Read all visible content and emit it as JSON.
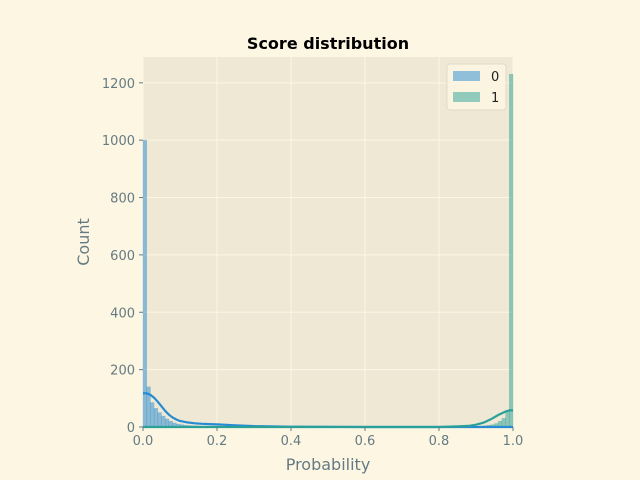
{
  "chart_data": {
    "type": "bar",
    "title": "Score distribution",
    "xlabel": "Probability",
    "ylabel": "Count",
    "xlim": [
      0,
      1
    ],
    "ylim": [
      0,
      1290
    ],
    "xticks": [
      "0.0",
      "0.2",
      "0.4",
      "0.6",
      "0.8",
      "1.0"
    ],
    "yticks": [
      "0",
      "200",
      "400",
      "600",
      "800",
      "1000",
      "1200"
    ],
    "grid": true,
    "legend": {
      "placement": "top-right",
      "entries": [
        "0",
        "1"
      ]
    },
    "bin_width": 0.01,
    "series": [
      {
        "name": "0",
        "color": "#268bd2",
        "bins": [
          {
            "x": 0.0,
            "count": 1000
          },
          {
            "x": 0.01,
            "count": 140
          },
          {
            "x": 0.02,
            "count": 85
          },
          {
            "x": 0.03,
            "count": 65
          },
          {
            "x": 0.04,
            "count": 50
          },
          {
            "x": 0.05,
            "count": 38
          },
          {
            "x": 0.06,
            "count": 28
          },
          {
            "x": 0.07,
            "count": 20
          },
          {
            "x": 0.08,
            "count": 14
          },
          {
            "x": 0.09,
            "count": 10
          },
          {
            "x": 0.1,
            "count": 8
          },
          {
            "x": 0.11,
            "count": 6
          },
          {
            "x": 0.12,
            "count": 5
          },
          {
            "x": 0.13,
            "count": 4
          },
          {
            "x": 0.14,
            "count": 4
          },
          {
            "x": 0.15,
            "count": 3
          },
          {
            "x": 0.16,
            "count": 3
          },
          {
            "x": 0.18,
            "count": 2
          },
          {
            "x": 0.2,
            "count": 2
          }
        ],
        "kde": [
          [
            0.0,
            118
          ],
          [
            0.01,
            117
          ],
          [
            0.02,
            112
          ],
          [
            0.03,
            102
          ],
          [
            0.04,
            88
          ],
          [
            0.05,
            72
          ],
          [
            0.06,
            56
          ],
          [
            0.07,
            43
          ],
          [
            0.08,
            33
          ],
          [
            0.09,
            26
          ],
          [
            0.1,
            21
          ],
          [
            0.12,
            16
          ],
          [
            0.14,
            13
          ],
          [
            0.16,
            11
          ],
          [
            0.18,
            10
          ],
          [
            0.2,
            9
          ],
          [
            0.25,
            6
          ],
          [
            0.3,
            3
          ],
          [
            0.4,
            1
          ],
          [
            0.6,
            0
          ],
          [
            0.8,
            0
          ],
          [
            1.0,
            0
          ]
        ]
      },
      {
        "name": "1",
        "color": "#2aa198",
        "bins": [
          {
            "x": 0.99,
            "count": 1230
          },
          {
            "x": 0.98,
            "count": 55
          },
          {
            "x": 0.97,
            "count": 30
          },
          {
            "x": 0.96,
            "count": 20
          },
          {
            "x": 0.95,
            "count": 12
          },
          {
            "x": 0.94,
            "count": 8
          },
          {
            "x": 0.93,
            "count": 6
          },
          {
            "x": 0.92,
            "count": 4
          },
          {
            "x": 0.91,
            "count": 3
          },
          {
            "x": 0.9,
            "count": 2
          },
          {
            "x": 0.88,
            "count": 1
          }
        ],
        "kde": [
          [
            0.0,
            0
          ],
          [
            0.5,
            0
          ],
          [
            0.8,
            0
          ],
          [
            0.85,
            2
          ],
          [
            0.88,
            4
          ],
          [
            0.9,
            8
          ],
          [
            0.92,
            15
          ],
          [
            0.94,
            27
          ],
          [
            0.96,
            42
          ],
          [
            0.98,
            54
          ],
          [
            0.99,
            58
          ],
          [
            1.0,
            58
          ]
        ]
      }
    ]
  }
}
